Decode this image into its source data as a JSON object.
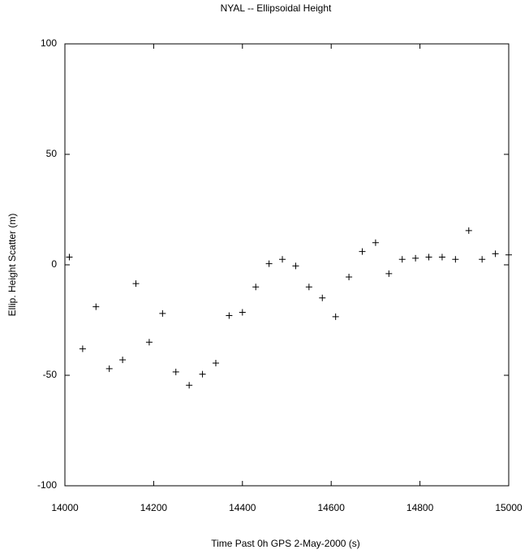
{
  "chart_data": {
    "type": "scatter",
    "title": "NYAL -- Ellipsoidal Height",
    "x_label": "Time Past 0h GPS 2-May-2000  (s)",
    "y_label": "Ellip. Height Scatter  (m)",
    "marker": "plus",
    "color": "#000000",
    "grid": false,
    "xlim": [
      14000,
      15000
    ],
    "xticks": [
      14000,
      14200,
      14400,
      14600,
      14800,
      15000
    ],
    "ylim": [
      -100,
      100
    ],
    "yticks": [
      -100,
      -50,
      0,
      50,
      100
    ],
    "x": [
      14010,
      14040,
      14070,
      14100,
      14130,
      14160,
      14190,
      14220,
      14250,
      14280,
      14310,
      14340,
      14370,
      14400,
      14430,
      14460,
      14490,
      14520,
      14550,
      14580,
      14610,
      14640,
      14670,
      14700,
      14730,
      14760,
      14790,
      14820,
      14850,
      14880,
      14910,
      14940,
      14970,
      15000
    ],
    "values": [
      3.5,
      -38,
      -19,
      -47,
      -43,
      -8.5,
      -35,
      -22,
      -48.5,
      -54.5,
      -49.5,
      -44.5,
      -23,
      -21.5,
      -10,
      0.5,
      2.5,
      -0.5,
      -10,
      -15,
      -23.5,
      -5.5,
      6,
      10,
      -4,
      2.5,
      3,
      3.5,
      3.5,
      2.5,
      15.5,
      2.5,
      5,
      4.5
    ]
  }
}
